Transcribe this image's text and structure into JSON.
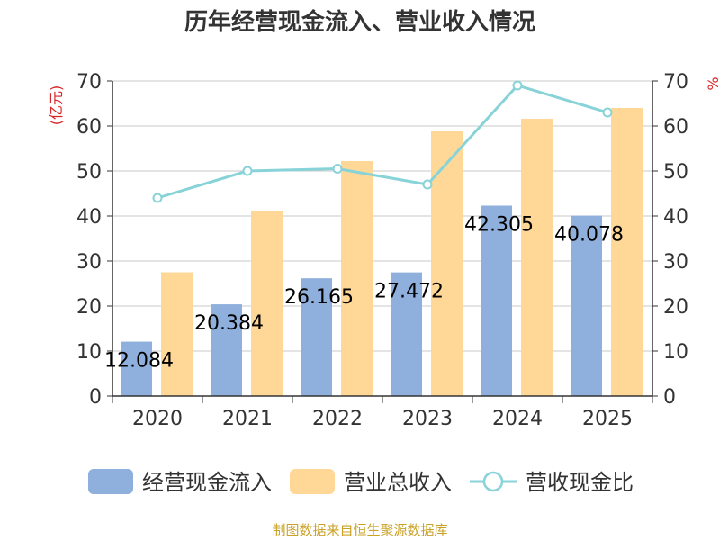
{
  "chart_data": {
    "type": "bar",
    "title": "历年经营现金流入、营业收入情况",
    "categories": [
      "2020",
      "2021",
      "2022",
      "2023",
      "2024",
      "2025"
    ],
    "series": [
      {
        "name": "经营现金流入",
        "type": "bar",
        "color": "#8fafdc",
        "values": [
          12.084,
          20.384,
          26.165,
          27.472,
          42.305,
          40.078
        ],
        "labels": [
          "12.084",
          "20.384",
          "26.165",
          "27.472",
          "42.305",
          "40.078"
        ]
      },
      {
        "name": "营业总收入",
        "type": "bar",
        "color": "#ffd898",
        "values": [
          27.5,
          41.2,
          52.2,
          58.8,
          61.6,
          64.0
        ]
      },
      {
        "name": "营收现金比",
        "type": "line",
        "color": "#88d3d8",
        "axis": "right",
        "values": [
          44.0,
          50.0,
          50.5,
          47.0,
          69.0,
          63.0
        ]
      }
    ],
    "y_left": {
      "label": "(亿元)",
      "ylim": [
        0,
        70
      ],
      "ticks": [
        "0",
        "10",
        "20",
        "30",
        "40",
        "50",
        "60",
        "70"
      ]
    },
    "y_right": {
      "label": "%",
      "ylim": [
        0,
        70
      ],
      "ticks": [
        "0",
        "10",
        "20",
        "30",
        "40",
        "50",
        "60",
        "70"
      ]
    },
    "grid": true,
    "legend_position": "bottom"
  },
  "source_text": "制图数据来自恒生聚源数据库"
}
